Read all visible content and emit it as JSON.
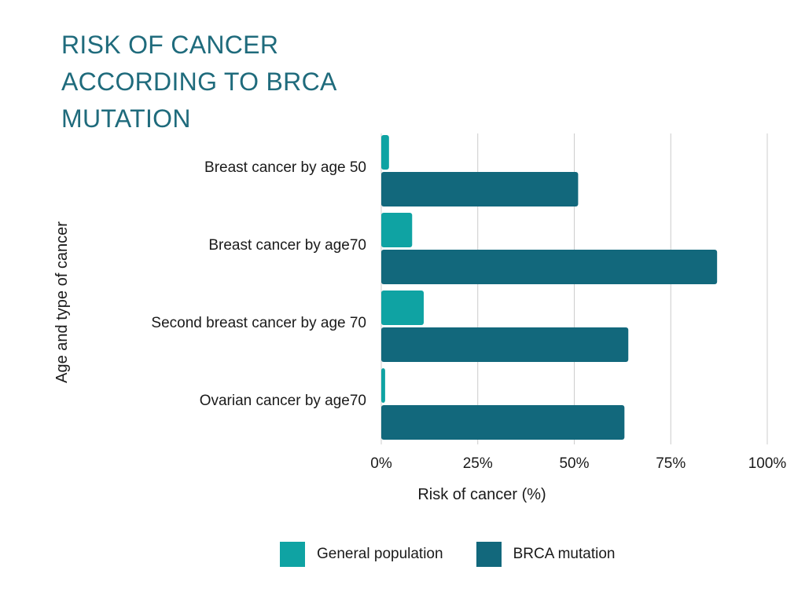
{
  "chart_data": {
    "type": "bar",
    "orientation": "horizontal",
    "title": "RISK OF CANCER ACCORDING TO BRCA MUTATION",
    "xlabel": "Risk of cancer (%)",
    "ylabel": "Age and type of cancer",
    "xlim": [
      0,
      100
    ],
    "xticks": [
      0,
      25,
      50,
      75,
      100
    ],
    "xtick_labels": [
      "0%",
      "25%",
      "50%",
      "75%",
      "100%"
    ],
    "grid": true,
    "categories": [
      "Breast cancer by age 50",
      "Breast cancer by age70",
      "Second breast cancer by age 70",
      "Ovarian cancer by age70"
    ],
    "series": [
      {
        "name": "General population",
        "color": "#0fa3a3",
        "values": [
          2,
          8,
          11,
          1
        ]
      },
      {
        "name": "BRCA mutation",
        "color": "#12687c",
        "values": [
          51,
          87,
          64,
          63
        ]
      }
    ],
    "legend_position": "bottom"
  },
  "title_lines": [
    "RISK OF CANCER",
    "ACCORDING TO BRCA",
    "MUTATION"
  ],
  "colors": {
    "title": "#1f6b7c",
    "grid": "#cccccc"
  }
}
